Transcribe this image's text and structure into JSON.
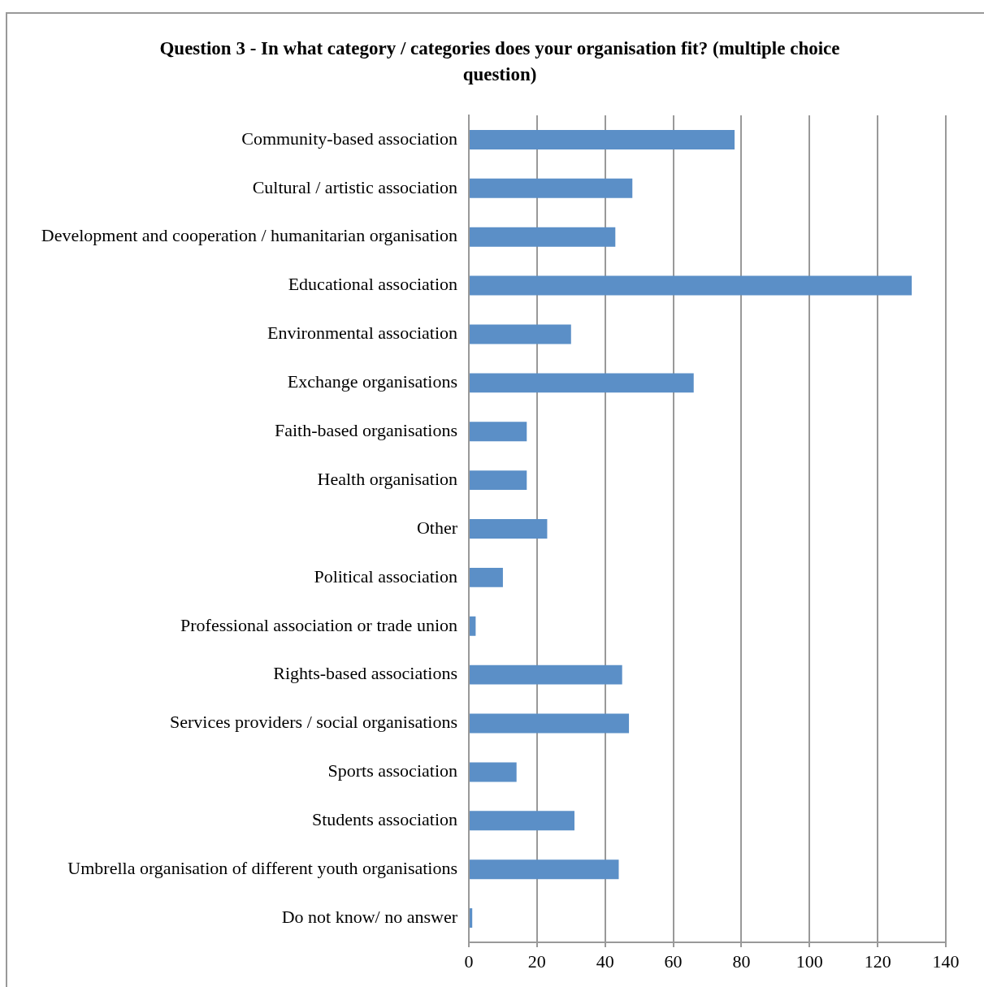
{
  "chart_data": {
    "type": "bar",
    "orientation": "horizontal",
    "title": "Question 3 - In what category / categories does your organisation fit? (multiple choice question)",
    "categories": [
      "Community-based association",
      "Cultural / artistic association",
      "Development and cooperation / humanitarian organisation",
      "Educational association",
      "Environmental association",
      "Exchange organisations",
      "Faith-based organisations",
      "Health organisation",
      "Other",
      "Political association",
      "Professional association or trade union",
      "Rights-based associations",
      "Services providers / social organisations",
      "Sports association",
      "Students association",
      "Umbrella organisation of different youth organisations",
      "Do not know/ no answer"
    ],
    "values": [
      78,
      48,
      43,
      130,
      30,
      66,
      17,
      17,
      23,
      10,
      2,
      45,
      47,
      14,
      31,
      44,
      1
    ],
    "color": "#5b8fc7",
    "xlim": [
      0,
      140
    ],
    "xticks": [
      0,
      20,
      40,
      60,
      80,
      100,
      120,
      140
    ],
    "grid": "x",
    "legend": false
  }
}
